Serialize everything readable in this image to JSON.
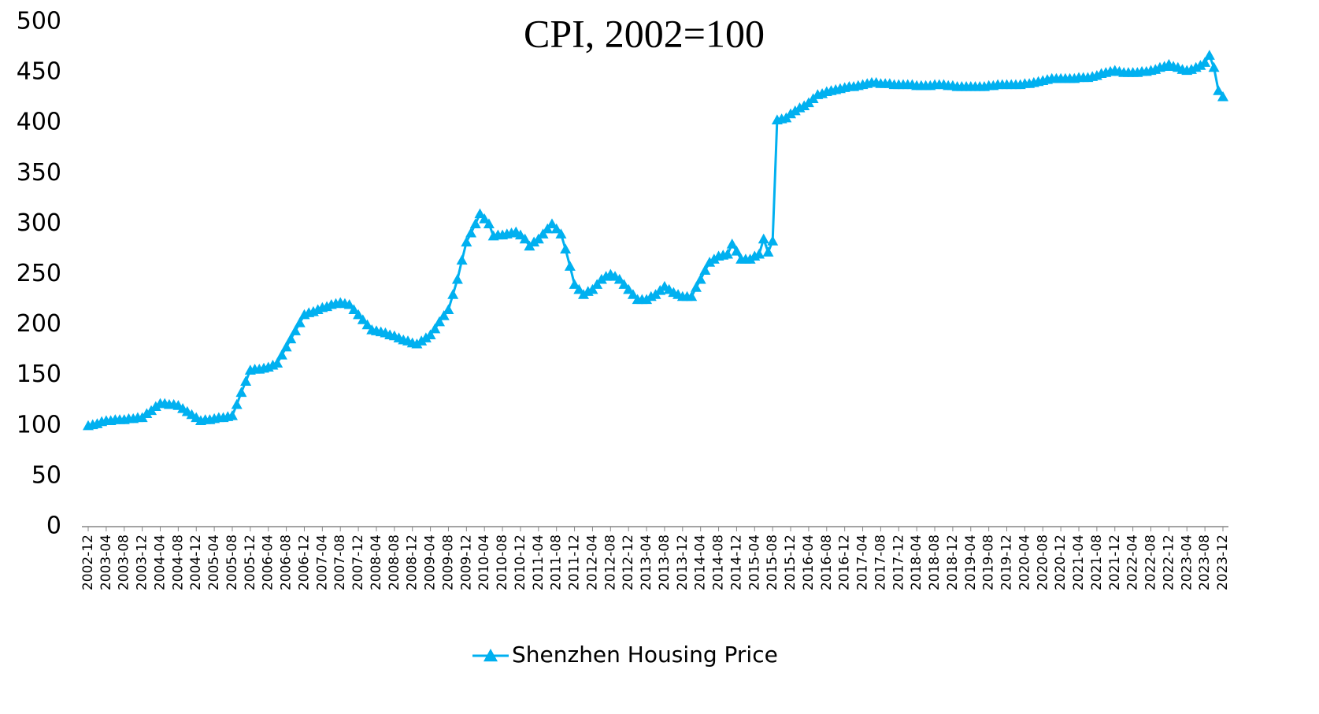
{
  "chart_data": {
    "type": "line",
    "title": "CPI, 2002=100",
    "categories": [
      "2002-12",
      null,
      null,
      null,
      "2003-04",
      null,
      null,
      null,
      "2003-08",
      null,
      null,
      null,
      "2003-12",
      null,
      null,
      null,
      "2004-04",
      null,
      null,
      null,
      "2004-08",
      null,
      null,
      null,
      "2004-12",
      null,
      null,
      null,
      "2005-04",
      null,
      null,
      null,
      "2005-08",
      null,
      null,
      null,
      "2005-12",
      null,
      null,
      null,
      "2006-04",
      null,
      null,
      null,
      "2006-08",
      null,
      null,
      null,
      "2006-12",
      null,
      null,
      null,
      "2007-04",
      null,
      null,
      null,
      "2007-08",
      null,
      null,
      null,
      "2007-12",
      null,
      null,
      null,
      "2008-04",
      null,
      null,
      null,
      "2008-08",
      null,
      null,
      null,
      "2008-12",
      null,
      null,
      null,
      "2009-04",
      null,
      null,
      null,
      "2009-08",
      null,
      null,
      null,
      "2009-12",
      null,
      null,
      null,
      "2010-04",
      null,
      null,
      null,
      "2010-08",
      null,
      null,
      null,
      "2010-12",
      null,
      null,
      null,
      "2011-04",
      null,
      null,
      null,
      "2011-08",
      null,
      null,
      null,
      "2011-12",
      null,
      null,
      null,
      "2012-04",
      null,
      null,
      null,
      "2012-08",
      null,
      null,
      null,
      "2012-12",
      null,
      null,
      null,
      "2013-04",
      null,
      null,
      null,
      "2013-08",
      null,
      null,
      null,
      "2013-12",
      null,
      null,
      null,
      "2014-04",
      null,
      null,
      null,
      "2014-08",
      null,
      null,
      null,
      "2014-12",
      null,
      null,
      null,
      "2015-04",
      null,
      null,
      null,
      "2015-08",
      null,
      null,
      null,
      "2015-12",
      null,
      null,
      null,
      "2016-04",
      null,
      null,
      null,
      "2016-08",
      null,
      null,
      null,
      "2016-12",
      null,
      null,
      null,
      "2017-04",
      null,
      null,
      null,
      "2017-08",
      null,
      null,
      null,
      "2017-12",
      null,
      null,
      null,
      "2018-04",
      null,
      null,
      null,
      "2018-08",
      null,
      null,
      null,
      "2018-12",
      null,
      null,
      null,
      "2019-04",
      null,
      null,
      null,
      "2019-08",
      null,
      null,
      null,
      "2019-12",
      null,
      null,
      null,
      "2020-04",
      null,
      null,
      null,
      "2020-08",
      null,
      null,
      null,
      "2020-12",
      null,
      null,
      null,
      "2021-04",
      null,
      null,
      null,
      "2021-08",
      null,
      null,
      null,
      "2021-12",
      null,
      null,
      null,
      "2022-04",
      null,
      null,
      null,
      "2022-08",
      null,
      null,
      null,
      "2022-12",
      null,
      null,
      null,
      "2023-04",
      null,
      null,
      null,
      "2023-08",
      null,
      null,
      null,
      "2023-12"
    ],
    "series": [
      {
        "name": "Shenzhen Housing Price",
        "color": "#00b0f0",
        "values": [
          100,
          101,
          102,
          104,
          105,
          105,
          106,
          106,
          106,
          107,
          107,
          108,
          108,
          112,
          115,
          119,
          122,
          122,
          121,
          121,
          120,
          117,
          114,
          111,
          108,
          105,
          106,
          106,
          107,
          108,
          108,
          109,
          110,
          121,
          133,
          144,
          155,
          156,
          156,
          157,
          158,
          160,
          162,
          170,
          178,
          186,
          194,
          202,
          210,
          212,
          213,
          215,
          217,
          218,
          220,
          221,
          222,
          221,
          220,
          215,
          210,
          205,
          200,
          195,
          194,
          193,
          192,
          190,
          189,
          187,
          185,
          184,
          182,
          181,
          184,
          187,
          190,
          196,
          203,
          209,
          215,
          230,
          245,
          264,
          282,
          291,
          300,
          310,
          305,
          300,
          288,
          289,
          289,
          290,
          291,
          292,
          289,
          285,
          278,
          282,
          285,
          290,
          295,
          300,
          295,
          290,
          275,
          258,
          240,
          235,
          230,
          233,
          235,
          240,
          245,
          248,
          250,
          248,
          245,
          240,
          235,
          230,
          225,
          225,
          225,
          228,
          230,
          234,
          238,
          235,
          232,
          230,
          228,
          228,
          228,
          237,
          245,
          254,
          262,
          265,
          268,
          269,
          270,
          280,
          273,
          265,
          265,
          265,
          268,
          270,
          285,
          272,
          283,
          403,
          404,
          405,
          409,
          412,
          415,
          417,
          420,
          424,
          428,
          429,
          431,
          432,
          433,
          434,
          435,
          436,
          436,
          437,
          438,
          439,
          440,
          440,
          439,
          439,
          439,
          438,
          438,
          438,
          438,
          438,
          437,
          437,
          437,
          437,
          438,
          438,
          438,
          437,
          437,
          436,
          436,
          436,
          436,
          436,
          436,
          436,
          437,
          437,
          438,
          438,
          438,
          438,
          438,
          438,
          439,
          439,
          440,
          441,
          442,
          443,
          444,
          444,
          444,
          444,
          444,
          444,
          445,
          445,
          445,
          446,
          447,
          449,
          450,
          451,
          452,
          451,
          450,
          450,
          450,
          450,
          451,
          451,
          452,
          453,
          455,
          456,
          458,
          456,
          455,
          453,
          452,
          453,
          455,
          457,
          460,
          467,
          455,
          432,
          426
        ]
      }
    ],
    "ylim": [
      0,
      500
    ],
    "yticks": [
      0,
      50,
      100,
      150,
      200,
      250,
      300,
      350,
      400,
      450,
      500
    ],
    "grid": false,
    "legend": "bottom"
  }
}
